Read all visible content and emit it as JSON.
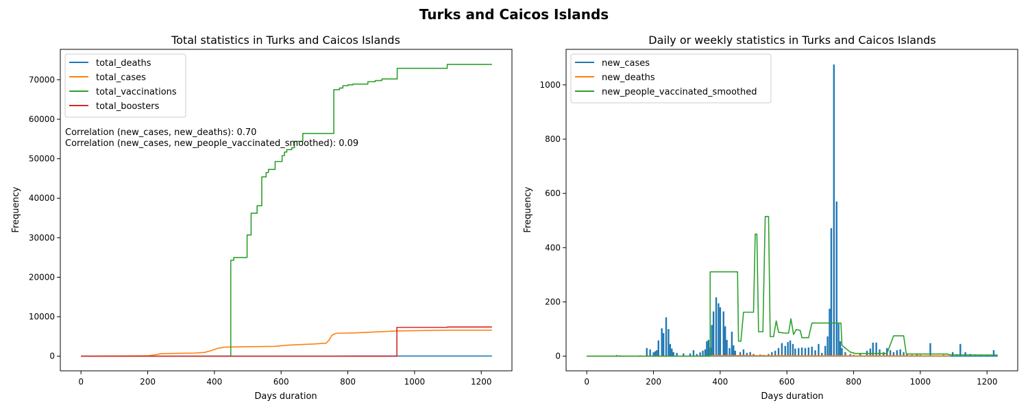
{
  "figure": {
    "suptitle": "Turks and Caicos Islands"
  },
  "chart_data": [
    {
      "type": "line",
      "title": "Total statistics in Turks and Caicos Islands",
      "xlabel": "Days duration",
      "ylabel": "Frequency",
      "xlim": [
        -62,
        1292
      ],
      "ylim": [
        -3700,
        77700
      ],
      "xticks": [
        0,
        200,
        400,
        600,
        800,
        1000,
        1200
      ],
      "yticks": [
        0,
        10000,
        20000,
        30000,
        40000,
        50000,
        60000,
        70000
      ],
      "legend_position": "upper-left",
      "grid": false,
      "annotations": [
        "Correlation (new_cases, new_deaths): 0.70",
        "Correlation (new_cases, new_people_vaccinated_smoothed): 0.09"
      ],
      "series": [
        {
          "name": "total_deaths",
          "color": "#1f77b4",
          "points": [
            [
              0,
              0
            ],
            [
              200,
              0
            ],
            [
              240,
              2
            ],
            [
              400,
              18
            ],
            [
              560,
              23
            ],
            [
              760,
              33
            ],
            [
              900,
              36
            ],
            [
              1232,
              39
            ]
          ]
        },
        {
          "name": "total_cases",
          "color": "#ff7f0e",
          "points": [
            [
              0,
              0
            ],
            [
              200,
              100
            ],
            [
              225,
              400
            ],
            [
              240,
              650
            ],
            [
              280,
              720
            ],
            [
              340,
              790
            ],
            [
              370,
              950
            ],
            [
              390,
              1400
            ],
            [
              410,
              2000
            ],
            [
              430,
              2300
            ],
            [
              500,
              2400
            ],
            [
              580,
              2500
            ],
            [
              620,
              2800
            ],
            [
              700,
              3100
            ],
            [
              735,
              3300
            ],
            [
              745,
              4200
            ],
            [
              752,
              5300
            ],
            [
              765,
              5800
            ],
            [
              820,
              5900
            ],
            [
              870,
              6100
            ],
            [
              950,
              6400
            ],
            [
              1100,
              6600
            ],
            [
              1232,
              6600
            ]
          ]
        },
        {
          "name": "total_vaccinations",
          "color": "#2ca02c",
          "step": true,
          "points": [
            [
              0,
              0
            ],
            [
              449,
              0
            ],
            [
              449,
              24300
            ],
            [
              458,
              24300
            ],
            [
              458,
              25000
            ],
            [
              498,
              25000
            ],
            [
              498,
              30700
            ],
            [
              510,
              30700
            ],
            [
              510,
              36200
            ],
            [
              528,
              36200
            ],
            [
              528,
              38100
            ],
            [
              542,
              38100
            ],
            [
              542,
              45400
            ],
            [
              555,
              45400
            ],
            [
              555,
              46500
            ],
            [
              562,
              46500
            ],
            [
              562,
              47300
            ],
            [
              582,
              47300
            ],
            [
              582,
              49300
            ],
            [
              603,
              49300
            ],
            [
              603,
              50800
            ],
            [
              610,
              50800
            ],
            [
              610,
              51700
            ],
            [
              617,
              51700
            ],
            [
              617,
              52300
            ],
            [
              632,
              52300
            ],
            [
              632,
              52800
            ],
            [
              640,
              52800
            ],
            [
              640,
              54400
            ],
            [
              665,
              54400
            ],
            [
              665,
              56400
            ],
            [
              758,
              56400
            ],
            [
              758,
              67500
            ],
            [
              775,
              67500
            ],
            [
              775,
              67900
            ],
            [
              785,
              67900
            ],
            [
              785,
              68500
            ],
            [
              800,
              68500
            ],
            [
              800,
              68700
            ],
            [
              815,
              68700
            ],
            [
              815,
              68900
            ],
            [
              860,
              68900
            ],
            [
              860,
              69500
            ],
            [
              882,
              69500
            ],
            [
              882,
              69800
            ],
            [
              902,
              69800
            ],
            [
              902,
              70200
            ],
            [
              948,
              70200
            ],
            [
              948,
              72900
            ],
            [
              1098,
              72900
            ],
            [
              1098,
              73900
            ],
            [
              1232,
              73900
            ]
          ]
        },
        {
          "name": "total_boosters",
          "color": "#d62728",
          "step": true,
          "points": [
            [
              0,
              0
            ],
            [
              947,
              0
            ],
            [
              947,
              7300
            ],
            [
              1098,
              7300
            ],
            [
              1098,
              7400
            ],
            [
              1232,
              7400
            ]
          ]
        }
      ]
    },
    {
      "type": "line",
      "title": "Daily or weekly statistics in Turks and Caicos Islands",
      "xlabel": "Days duration",
      "ylabel": "Frequency",
      "xlim": [
        -62,
        1292
      ],
      "ylim": [
        -54,
        1131
      ],
      "xticks": [
        0,
        200,
        400,
        600,
        800,
        1000,
        1200
      ],
      "yticks": [
        0,
        200,
        400,
        600,
        800,
        1000
      ],
      "legend_position": "upper-left",
      "grid": false,
      "series": [
        {
          "name": "new_cases",
          "color": "#1f77b4",
          "spikes": [
            [
              70,
              2
            ],
            [
              90,
              4
            ],
            [
              100,
              3
            ],
            [
              110,
              2
            ],
            [
              160,
              3
            ],
            [
              180,
              30
            ],
            [
              190,
              25
            ],
            [
              200,
              14
            ],
            [
              205,
              18
            ],
            [
              210,
              22
            ],
            [
              215,
              58
            ],
            [
              225,
              103
            ],
            [
              230,
              85
            ],
            [
              238,
              143
            ],
            [
              245,
              100
            ],
            [
              250,
              45
            ],
            [
              255,
              28
            ],
            [
              260,
              15
            ],
            [
              270,
              12
            ],
            [
              290,
              10
            ],
            [
              310,
              10
            ],
            [
              320,
              22
            ],
            [
              330,
              8
            ],
            [
              340,
              14
            ],
            [
              348,
              20
            ],
            [
              355,
              25
            ],
            [
              360,
              55
            ],
            [
              365,
              60
            ],
            [
              370,
              32
            ],
            [
              375,
              115
            ],
            [
              380,
              165
            ],
            [
              388,
              217
            ],
            [
              395,
              195
            ],
            [
              400,
              180
            ],
            [
              410,
              165
            ],
            [
              415,
              110
            ],
            [
              420,
              60
            ],
            [
              428,
              30
            ],
            [
              435,
              90
            ],
            [
              440,
              40
            ],
            [
              445,
              20
            ],
            [
              460,
              15
            ],
            [
              470,
              25
            ],
            [
              480,
              12
            ],
            [
              490,
              15
            ],
            [
              500,
              8
            ],
            [
              520,
              6
            ],
            [
              530,
              5
            ],
            [
              545,
              8
            ],
            [
              555,
              15
            ],
            [
              565,
              20
            ],
            [
              575,
              30
            ],
            [
              585,
              48
            ],
            [
              595,
              38
            ],
            [
              603,
              52
            ],
            [
              610,
              58
            ],
            [
              618,
              45
            ],
            [
              625,
              28
            ],
            [
              635,
              30
            ],
            [
              645,
              32
            ],
            [
              655,
              30
            ],
            [
              665,
              32
            ],
            [
              675,
              35
            ],
            [
              685,
              22
            ],
            [
              695,
              45
            ],
            [
              705,
              12
            ],
            [
              715,
              38
            ],
            [
              722,
              73
            ],
            [
              728,
              175
            ],
            [
              733,
              472
            ],
            [
              741,
              1075
            ],
            [
              749,
              570
            ],
            [
              755,
              120
            ],
            [
              760,
              55
            ],
            [
              765,
              30
            ],
            [
              775,
              15
            ],
            [
              790,
              8
            ],
            [
              800,
              5
            ],
            [
              820,
              8
            ],
            [
              840,
              20
            ],
            [
              850,
              28
            ],
            [
              858,
              50
            ],
            [
              868,
              50
            ],
            [
              878,
              25
            ],
            [
              890,
              15
            ],
            [
              900,
              30
            ],
            [
              910,
              22
            ],
            [
              920,
              15
            ],
            [
              930,
              22
            ],
            [
              940,
              25
            ],
            [
              950,
              15
            ],
            [
              960,
              8
            ],
            [
              975,
              5
            ],
            [
              990,
              8
            ],
            [
              1000,
              5
            ],
            [
              1020,
              3
            ],
            [
              1030,
              48
            ],
            [
              1050,
              3
            ],
            [
              1070,
              5
            ],
            [
              1085,
              3
            ],
            [
              1097,
              15
            ],
            [
              1110,
              3
            ],
            [
              1120,
              45
            ],
            [
              1135,
              15
            ],
            [
              1150,
              8
            ],
            [
              1165,
              5
            ],
            [
              1180,
              3
            ],
            [
              1200,
              5
            ],
            [
              1220,
              22
            ]
          ]
        },
        {
          "name": "new_deaths",
          "color": "#ff7f0e",
          "points": [
            [
              0,
              0
            ],
            [
              360,
              0
            ],
            [
              380,
              2
            ],
            [
              450,
              2
            ],
            [
              700,
              1
            ],
            [
              1090,
              1
            ]
          ]
        },
        {
          "name": "new_people_vaccinated_smoothed",
          "color": "#2ca02c",
          "points": [
            [
              0,
              0
            ],
            [
              370,
              0
            ],
            [
              370,
              311
            ],
            [
              452,
              311
            ],
            [
              455,
              55
            ],
            [
              462,
              55
            ],
            [
              470,
              162
            ],
            [
              500,
              162
            ],
            [
              505,
              450
            ],
            [
              510,
              450
            ],
            [
              515,
              90
            ],
            [
              528,
              90
            ],
            [
              535,
              515
            ],
            [
              545,
              515
            ],
            [
              550,
              72
            ],
            [
              560,
              72
            ],
            [
              568,
              130
            ],
            [
              575,
              88
            ],
            [
              595,
              85
            ],
            [
              605,
              85
            ],
            [
              612,
              138
            ],
            [
              620,
              80
            ],
            [
              628,
              98
            ],
            [
              640,
              95
            ],
            [
              645,
              68
            ],
            [
              665,
              68
            ],
            [
              675,
              122
            ],
            [
              762,
              122
            ],
            [
              765,
              40
            ],
            [
              775,
              30
            ],
            [
              790,
              15
            ],
            [
              805,
              10
            ],
            [
              900,
              10
            ],
            [
              920,
              75
            ],
            [
              950,
              75
            ],
            [
              958,
              8
            ],
            [
              1080,
              8
            ],
            [
              1090,
              5
            ],
            [
              1232,
              4
            ]
          ]
        }
      ]
    }
  ]
}
